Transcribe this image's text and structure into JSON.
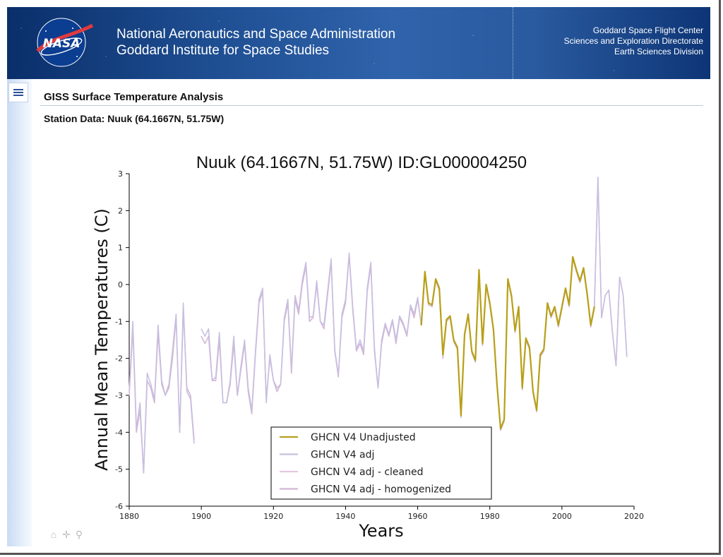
{
  "header": {
    "agency_line1": "National Aeronautics and Space Administration",
    "agency_line2": "Goddard Institute for Space Studies",
    "center_line1": "Goddard Space Flight Center",
    "center_line2": "Sciences and Exploration Directorate",
    "center_line3": "Earth Sciences Division",
    "logo_text": "NASA"
  },
  "page": {
    "title": "GISS Surface Temperature Analysis",
    "station_label": "Station Data: Nuuk (64.1667N, 51.75W)"
  },
  "icons": {
    "menu": "menu-icon",
    "toolbar": [
      "home-icon",
      "pan-icon",
      "zoom-icon"
    ]
  },
  "chart_data": {
    "type": "line",
    "title": "Nuuk (64.1667N, 51.75W) ID:GL000004250",
    "xlabel": "Years",
    "ylabel": "Annual Mean Temperatures (C)",
    "xlim": [
      1880,
      2020
    ],
    "ylim": [
      -6,
      3
    ],
    "xticks": [
      1880,
      1900,
      1920,
      1940,
      1960,
      1980,
      2000,
      2020
    ],
    "yticks": [
      -6,
      -5,
      -4,
      -3,
      -2,
      -1,
      0,
      1,
      2,
      3
    ],
    "legend_position": "bottom-center",
    "series": [
      {
        "name": "GHCN V4 Unadjusted",
        "color": "#b8a018",
        "x": [
          1961,
          1962,
          1963,
          1964,
          1965,
          1966,
          1967,
          1968,
          1969,
          1970,
          1971,
          1972,
          1973,
          1974,
          1975,
          1976,
          1977,
          1978,
          1979,
          1980,
          1981,
          1982,
          1983,
          1984,
          1985,
          1986,
          1987,
          1988,
          1989,
          1990,
          1991,
          1992,
          1993,
          1994,
          1995,
          1996,
          1997,
          1998,
          1999,
          2000,
          2001,
          2002,
          2003,
          2004,
          2005,
          2006,
          2007,
          2008,
          2009
        ],
        "y": [
          -1.1,
          0.35,
          -0.5,
          -0.55,
          0.15,
          -0.1,
          -1.9,
          -0.95,
          -0.85,
          -1.5,
          -1.7,
          -3.55,
          -1.35,
          -0.8,
          -1.8,
          -2.05,
          0.4,
          -1.6,
          0.0,
          -0.5,
          -1.2,
          -2.7,
          -3.9,
          -3.65,
          0.15,
          -0.3,
          -1.25,
          -0.6,
          -2.8,
          -1.45,
          -1.7,
          -2.9,
          -3.4,
          -1.9,
          -1.75,
          -0.5,
          -0.85,
          -0.6,
          -1.1,
          -0.6,
          -0.1,
          -0.55,
          0.75,
          0.4,
          0.1,
          0.45,
          -0.25,
          -1.1,
          -0.6
        ]
      },
      {
        "name": "GHCN V4 adj",
        "color": "#c9bfe0",
        "x": [
          1880,
          1881,
          1882,
          1883,
          1884,
          1885,
          1886,
          1887,
          1888,
          1889,
          1890,
          1891,
          1892,
          1893,
          1894,
          1895,
          1896,
          1897,
          1898,
          1900,
          1901,
          1902,
          1903,
          1904,
          1905,
          1906,
          1907,
          1908,
          1909,
          1910,
          1911,
          1912,
          1913,
          1914,
          1915,
          1916,
          1917,
          1918,
          1919,
          1920,
          1921,
          1922,
          1923,
          1924,
          1925,
          1926,
          1927,
          1928,
          1929,
          1930,
          1931,
          1932,
          1933,
          1934,
          1935,
          1936,
          1937,
          1938,
          1939,
          1940,
          1941,
          1942,
          1943,
          1944,
          1945,
          1946,
          1947,
          1948,
          1949,
          1950,
          1951,
          1952,
          1953,
          1954,
          1955,
          1956,
          1957,
          1958,
          1959,
          1960,
          1961,
          1962,
          1963,
          1964,
          1965,
          1966,
          1967,
          1968,
          1969,
          1970,
          1971,
          1972,
          1973,
          1974,
          1975,
          1976,
          1977,
          1978,
          1979,
          1980,
          1981,
          1982,
          1983,
          1984,
          1985,
          1986,
          1987,
          1988,
          1989,
          1990,
          1991,
          1992,
          1993,
          1994,
          1995,
          1996,
          1997,
          1998,
          1999,
          2000,
          2001,
          2002,
          2003,
          2004,
          2005,
          2006,
          2007,
          2008,
          2009,
          2010,
          2011,
          2012,
          2013,
          2014,
          2015,
          2016,
          2017,
          2018
        ],
        "y": [
          -2.9,
          -1.0,
          -3.9,
          -3.2,
          -5.1,
          -2.4,
          -2.7,
          -3.1,
          -1.1,
          -2.6,
          -3.0,
          -2.7,
          -1.8,
          -0.8,
          -4.0,
          -0.5,
          -2.9,
          -3.1,
          -4.3,
          -1.2,
          -1.4,
          -1.2,
          -2.6,
          -2.5,
          -1.3,
          -3.2,
          -3.2,
          -2.6,
          -1.4,
          -3.0,
          -2.2,
          -1.5,
          -2.8,
          -3.4,
          -1.8,
          -0.4,
          -0.1,
          -3.2,
          -1.9,
          -2.6,
          -2.8,
          -2.7,
          -0.9,
          -0.4,
          -2.3,
          -0.3,
          -0.7,
          0.1,
          0.6,
          -0.9,
          -0.85,
          0.1,
          -1.0,
          -1.1,
          -0.2,
          0.7,
          -1.75,
          -2.45,
          -0.8,
          -0.4,
          0.85,
          -0.6,
          -1.75,
          -1.5,
          -1.8,
          -0.1,
          0.6,
          -1.7,
          -2.8,
          -1.5,
          -1.05,
          -1.35,
          -0.95,
          -1.5,
          -0.85,
          -1.05,
          -1.35,
          -0.55,
          -0.8,
          -0.35,
          -1.1,
          0.35,
          -0.5,
          -0.55,
          0.15,
          -0.1,
          -1.9,
          -0.95,
          -0.85,
          -1.5,
          -1.7,
          -3.55,
          -1.35,
          -0.8,
          -1.8,
          -2.05,
          0.4,
          -1.6,
          0.0,
          -0.5,
          -1.2,
          -2.7,
          -3.9,
          -3.65,
          0.15,
          -0.3,
          -1.25,
          -0.6,
          -2.8,
          -1.45,
          -1.7,
          -2.9,
          -3.4,
          -1.9,
          -1.75,
          -0.5,
          -0.85,
          -0.6,
          -1.1,
          -0.6,
          -0.1,
          -0.55,
          0.75,
          0.4,
          0.1,
          0.45,
          -0.25,
          -1.1,
          -0.6,
          2.9,
          -0.9,
          -0.3,
          -0.15,
          -1.3,
          -2.2,
          0.2,
          -0.3,
          -1.95
        ]
      },
      {
        "name": "GHCN V4 adj - cleaned",
        "color": "#e6c7df",
        "x": [],
        "y": []
      },
      {
        "name": "GHCN V4 adj - homogenized",
        "color": "#d3b5d6",
        "x": [
          1880,
          1881,
          1882,
          1883,
          1884,
          1885,
          1886,
          1887,
          1888,
          1889,
          1890,
          1891,
          1892,
          1893,
          1894,
          1895,
          1896,
          1897,
          1898,
          1900,
          1901,
          1902,
          1903,
          1904,
          1905,
          1906,
          1907,
          1908,
          1909,
          1910,
          1911,
          1912,
          1913,
          1914,
          1915,
          1916,
          1917,
          1918,
          1919,
          1920,
          1921,
          1922,
          1923,
          1924,
          1925,
          1926,
          1927,
          1928,
          1929,
          1930,
          1931,
          1932,
          1933,
          1934,
          1935,
          1936,
          1937,
          1938,
          1939,
          1940,
          1941,
          1942,
          1943,
          1944,
          1945,
          1946,
          1947,
          1948,
          1949,
          1950,
          1951,
          1952,
          1953,
          1954,
          1955,
          1956,
          1957,
          1958,
          1959,
          1960,
          1961,
          1962,
          1963,
          1964,
          1965,
          1966,
          1967,
          1968,
          1969,
          1970,
          1971,
          1972,
          1973,
          1974,
          1975,
          1976,
          1977,
          1978,
          1979,
          1980,
          1981,
          1982,
          1983,
          1984,
          1985,
          1986,
          1987,
          1988,
          1989,
          1990,
          1991,
          1992,
          1993,
          1994,
          1995,
          1996,
          1997,
          1998,
          1999,
          2000,
          2001,
          2002,
          2003,
          2004,
          2005,
          2006,
          2007,
          2008,
          2009,
          2010,
          2011,
          2012,
          2013,
          2014,
          2015,
          2016,
          2017,
          2018
        ],
        "y": [
          -3.0,
          -1.2,
          -4.0,
          -3.4,
          -5.1,
          -2.6,
          -2.8,
          -3.2,
          -1.3,
          -2.7,
          -3.0,
          -2.8,
          -2.0,
          -0.9,
          -4.0,
          -0.7,
          -2.8,
          -3.0,
          -4.2,
          -1.4,
          -1.6,
          -1.4,
          -2.6,
          -2.6,
          -1.5,
          -3.2,
          -3.2,
          -2.7,
          -1.6,
          -3.0,
          -2.3,
          -1.6,
          -2.9,
          -3.5,
          -1.9,
          -0.5,
          -0.2,
          -3.1,
          -2.0,
          -2.6,
          -2.9,
          -2.7,
          -1.0,
          -0.5,
          -2.4,
          -0.4,
          -0.8,
          0.0,
          0.5,
          -1.0,
          -0.9,
          0.0,
          -1.0,
          -1.2,
          -0.3,
          0.6,
          -1.8,
          -2.5,
          -0.9,
          -0.5,
          0.8,
          -0.7,
          -1.8,
          -1.6,
          -1.9,
          -0.2,
          0.5,
          -1.8,
          -2.8,
          -1.6,
          -1.1,
          -1.4,
          -1.0,
          -1.6,
          -0.9,
          -1.1,
          -1.4,
          -0.6,
          -0.9,
          -0.4,
          -1.1,
          0.3,
          -0.55,
          -0.6,
          0.1,
          -0.15,
          -2.0,
          -1.0,
          -0.9,
          -1.55,
          -1.75,
          -3.6,
          -1.4,
          -0.85,
          -1.85,
          -2.1,
          0.35,
          -1.65,
          -0.05,
          -0.55,
          -1.25,
          -2.75,
          -3.95,
          -3.7,
          0.1,
          -0.35,
          -1.3,
          -0.65,
          -2.85,
          -1.5,
          -1.75,
          -2.95,
          -3.45,
          -1.95,
          -1.8,
          -0.55,
          -0.9,
          -0.65,
          -1.15,
          -0.65,
          -0.15,
          -0.6,
          0.7,
          0.35,
          0.05,
          0.4,
          -0.3,
          -1.15,
          -0.65,
          2.9,
          -0.9,
          -0.3,
          -0.15,
          -1.3,
          -2.2,
          0.2,
          -0.3,
          -1.95
        ]
      }
    ]
  }
}
